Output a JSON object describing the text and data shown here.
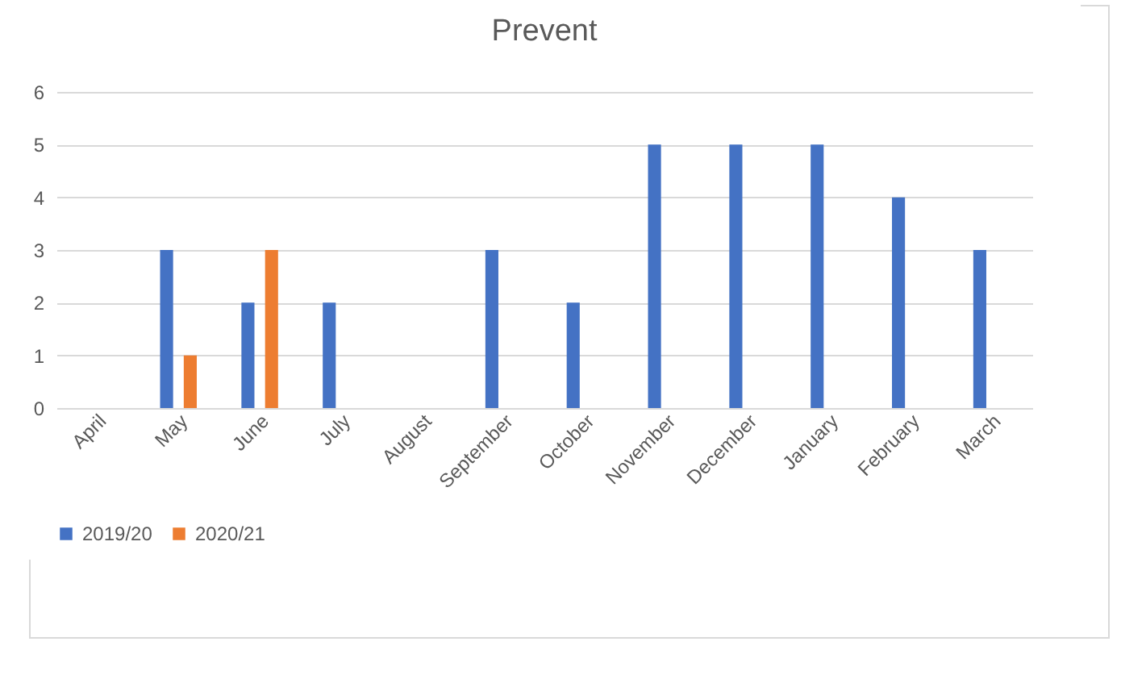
{
  "chart_data": {
    "type": "bar",
    "title": "Prevent",
    "categories": [
      "April",
      "May",
      "June",
      "July",
      "August",
      "September",
      "October",
      "November",
      "December",
      "January",
      "February",
      "March"
    ],
    "series": [
      {
        "name": "2019/20",
        "color": "#4472c4",
        "values": [
          0,
          3,
          2,
          2,
          0,
          3,
          2,
          5,
          5,
          5,
          4,
          3
        ]
      },
      {
        "name": "2020/21",
        "color": "#ed7d31",
        "values": [
          null,
          1,
          3,
          null,
          null,
          null,
          null,
          null,
          null,
          null,
          null,
          null
        ]
      }
    ],
    "ylim": [
      0,
      6
    ],
    "yticks": [
      0,
      1,
      2,
      3,
      4,
      5,
      6
    ],
    "grid": "y",
    "legend": "bottom"
  }
}
